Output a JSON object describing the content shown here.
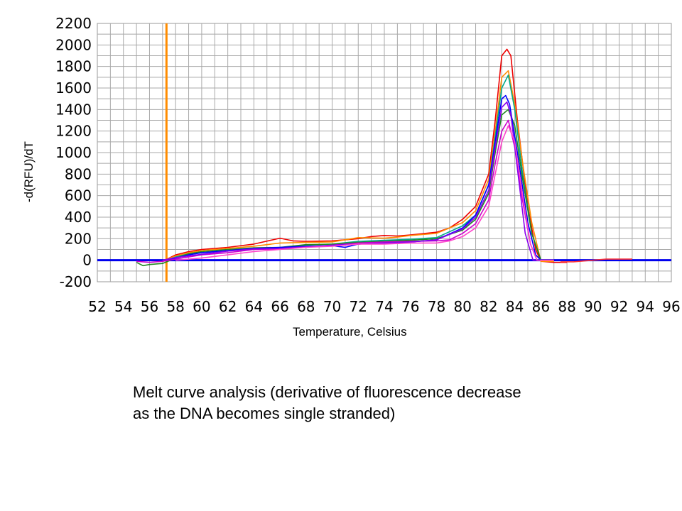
{
  "chart_data": {
    "type": "line",
    "xlabel": "Temperature, Celsius",
    "ylabel": "-d(RFU)/dT",
    "xlim": [
      52,
      96
    ],
    "ylim": [
      -200,
      2200
    ],
    "x_ticks": [
      "52",
      "54",
      "56",
      "58",
      "60",
      "62",
      "64",
      "66",
      "68",
      "70",
      "72",
      "74",
      "76",
      "78",
      "80",
      "82",
      "84",
      "86",
      "88",
      "90",
      "92",
      "94",
      "96"
    ],
    "y_ticks": [
      "-200",
      "0",
      "200",
      "400",
      "600",
      "800",
      "1000",
      "1200",
      "1400",
      "1600",
      "1800",
      "2000",
      "2200"
    ],
    "grid": true,
    "threshold_line": {
      "y": 0,
      "color": "#0000ee"
    },
    "marker_line": {
      "x": 57.3,
      "color": "#ff8c00"
    },
    "series": [
      {
        "color": "#ee0000",
        "points": [
          [
            57,
            -10
          ],
          [
            58,
            50
          ],
          [
            59,
            80
          ],
          [
            60,
            100
          ],
          [
            62,
            120
          ],
          [
            64,
            150
          ],
          [
            66,
            205
          ],
          [
            67,
            180
          ],
          [
            68,
            175
          ],
          [
            70,
            180
          ],
          [
            72,
            200
          ],
          [
            73,
            220
          ],
          [
            74,
            230
          ],
          [
            75,
            225
          ],
          [
            76,
            235
          ],
          [
            78,
            260
          ],
          [
            79,
            300
          ],
          [
            80,
            380
          ],
          [
            81,
            500
          ],
          [
            82,
            800
          ],
          [
            82.5,
            1300
          ],
          [
            83,
            1900
          ],
          [
            83.4,
            1960
          ],
          [
            83.7,
            1900
          ],
          [
            84.2,
            1300
          ],
          [
            85,
            500
          ],
          [
            85.6,
            100
          ],
          [
            86,
            -10
          ],
          [
            87,
            -20
          ],
          [
            88,
            -20
          ]
        ]
      },
      {
        "color": "#ff8c00",
        "points": [
          [
            57,
            -5
          ],
          [
            58,
            40
          ],
          [
            59,
            70
          ],
          [
            60,
            90
          ],
          [
            62,
            110
          ],
          [
            64,
            130
          ],
          [
            66,
            160
          ],
          [
            68,
            165
          ],
          [
            70,
            170
          ],
          [
            72,
            210
          ],
          [
            74,
            205
          ],
          [
            75,
            215
          ],
          [
            76,
            230
          ],
          [
            78,
            250
          ],
          [
            80,
            350
          ],
          [
            81,
            460
          ],
          [
            82,
            750
          ],
          [
            82.5,
            1200
          ],
          [
            83,
            1700
          ],
          [
            83.5,
            1760
          ],
          [
            84,
            1450
          ],
          [
            84.6,
            900
          ],
          [
            85.3,
            350
          ],
          [
            86,
            -10
          ],
          [
            87,
            -10
          ]
        ]
      },
      {
        "color": "#00aa88",
        "points": [
          [
            57,
            -10
          ],
          [
            58,
            30
          ],
          [
            59,
            60
          ],
          [
            60,
            70
          ],
          [
            62,
            90
          ],
          [
            64,
            105
          ],
          [
            66,
            110
          ],
          [
            68,
            140
          ],
          [
            70,
            150
          ],
          [
            72,
            175
          ],
          [
            74,
            185
          ],
          [
            75,
            190
          ],
          [
            76,
            195
          ],
          [
            78,
            210
          ],
          [
            80,
            320
          ],
          [
            81,
            420
          ],
          [
            82,
            700
          ],
          [
            82.5,
            1150
          ],
          [
            83,
            1600
          ],
          [
            83.5,
            1720
          ],
          [
            84,
            1400
          ],
          [
            84.6,
            800
          ],
          [
            85.3,
            250
          ],
          [
            86,
            0
          ],
          [
            87,
            0
          ]
        ]
      },
      {
        "color": "#228822",
        "points": [
          [
            55,
            -20
          ],
          [
            55.5,
            -50
          ],
          [
            56,
            -40
          ],
          [
            57,
            -30
          ],
          [
            58,
            20
          ],
          [
            59,
            60
          ],
          [
            60,
            80
          ],
          [
            62,
            100
          ],
          [
            64,
            115
          ],
          [
            66,
            120
          ],
          [
            68,
            145
          ],
          [
            70,
            150
          ],
          [
            72,
            165
          ],
          [
            74,
            175
          ],
          [
            76,
            185
          ],
          [
            78,
            200
          ],
          [
            80,
            280
          ],
          [
            81,
            380
          ],
          [
            82,
            620
          ],
          [
            82.5,
            1000
          ],
          [
            83,
            1350
          ],
          [
            83.5,
            1400
          ],
          [
            84,
            1250
          ],
          [
            84.6,
            750
          ],
          [
            85.3,
            250
          ],
          [
            86,
            0
          ],
          [
            87,
            0
          ]
        ]
      },
      {
        "color": "#0000ff",
        "points": [
          [
            57,
            0
          ],
          [
            58,
            20
          ],
          [
            59,
            50
          ],
          [
            60,
            70
          ],
          [
            62,
            90
          ],
          [
            64,
            110
          ],
          [
            66,
            120
          ],
          [
            68,
            130
          ],
          [
            70,
            135
          ],
          [
            71,
            120
          ],
          [
            72,
            150
          ],
          [
            74,
            160
          ],
          [
            75,
            155
          ],
          [
            76,
            170
          ],
          [
            78,
            190
          ],
          [
            80,
            300
          ],
          [
            81,
            420
          ],
          [
            82,
            700
          ],
          [
            82.5,
            1100
          ],
          [
            83,
            1500
          ],
          [
            83.3,
            1530
          ],
          [
            83.6,
            1450
          ],
          [
            84.2,
            1000
          ],
          [
            85,
            350
          ],
          [
            85.6,
            50
          ],
          [
            86,
            0
          ],
          [
            87,
            0
          ]
        ]
      },
      {
        "color": "#cc00cc",
        "points": [
          [
            55,
            -10
          ],
          [
            56,
            -20
          ],
          [
            57,
            -10
          ],
          [
            58,
            10
          ],
          [
            59,
            30
          ],
          [
            60,
            50
          ],
          [
            62,
            70
          ],
          [
            64,
            100
          ],
          [
            66,
            105
          ],
          [
            68,
            120
          ],
          [
            70,
            140
          ],
          [
            72,
            160
          ],
          [
            74,
            170
          ],
          [
            76,
            175
          ],
          [
            78,
            180
          ],
          [
            79,
            190
          ],
          [
            80,
            250
          ],
          [
            81,
            340
          ],
          [
            82,
            560
          ],
          [
            82.5,
            900
          ],
          [
            83,
            1200
          ],
          [
            83.5,
            1300
          ],
          [
            84,
            1050
          ],
          [
            84.6,
            550
          ],
          [
            85.2,
            150
          ],
          [
            85.7,
            0
          ],
          [
            87,
            0
          ]
        ]
      },
      {
        "color": "#8800ee",
        "points": [
          [
            57,
            0
          ],
          [
            58,
            25
          ],
          [
            59,
            40
          ],
          [
            60,
            55
          ],
          [
            62,
            85
          ],
          [
            64,
            105
          ],
          [
            66,
            110
          ],
          [
            68,
            125
          ],
          [
            70,
            140
          ],
          [
            72,
            150
          ],
          [
            74,
            160
          ],
          [
            76,
            170
          ],
          [
            78,
            190
          ],
          [
            80,
            290
          ],
          [
            81,
            400
          ],
          [
            82,
            650
          ],
          [
            82.5,
            1050
          ],
          [
            83,
            1420
          ],
          [
            83.4,
            1470
          ],
          [
            83.7,
            1350
          ],
          [
            84.2,
            850
          ],
          [
            84.8,
            250
          ],
          [
            85.4,
            0
          ],
          [
            86,
            0
          ],
          [
            87,
            0
          ]
        ]
      },
      {
        "color": "#ff44cc",
        "points": [
          [
            58,
            0
          ],
          [
            60,
            20
          ],
          [
            62,
            50
          ],
          [
            64,
            80
          ],
          [
            66,
            100
          ],
          [
            68,
            120
          ],
          [
            70,
            130
          ],
          [
            72,
            150
          ],
          [
            74,
            150
          ],
          [
            76,
            160
          ],
          [
            78,
            160
          ],
          [
            79,
            180
          ],
          [
            80,
            220
          ],
          [
            81,
            300
          ],
          [
            82,
            500
          ],
          [
            82.5,
            800
          ],
          [
            83,
            1100
          ],
          [
            83.5,
            1250
          ],
          [
            84,
            1100
          ],
          [
            84.6,
            600
          ],
          [
            85.2,
            150
          ],
          [
            85.7,
            0
          ],
          [
            87,
            0
          ]
        ]
      },
      {
        "color": "#ff3333",
        "points": [
          [
            87.5,
            -15
          ],
          [
            88.5,
            -15
          ],
          [
            91,
            10
          ],
          [
            93,
            10
          ]
        ]
      }
    ]
  },
  "caption": {
    "line1": "Melt curve analysis (derivative of fluorescence decrease",
    "line2": "as the DNA becomes single stranded)"
  }
}
